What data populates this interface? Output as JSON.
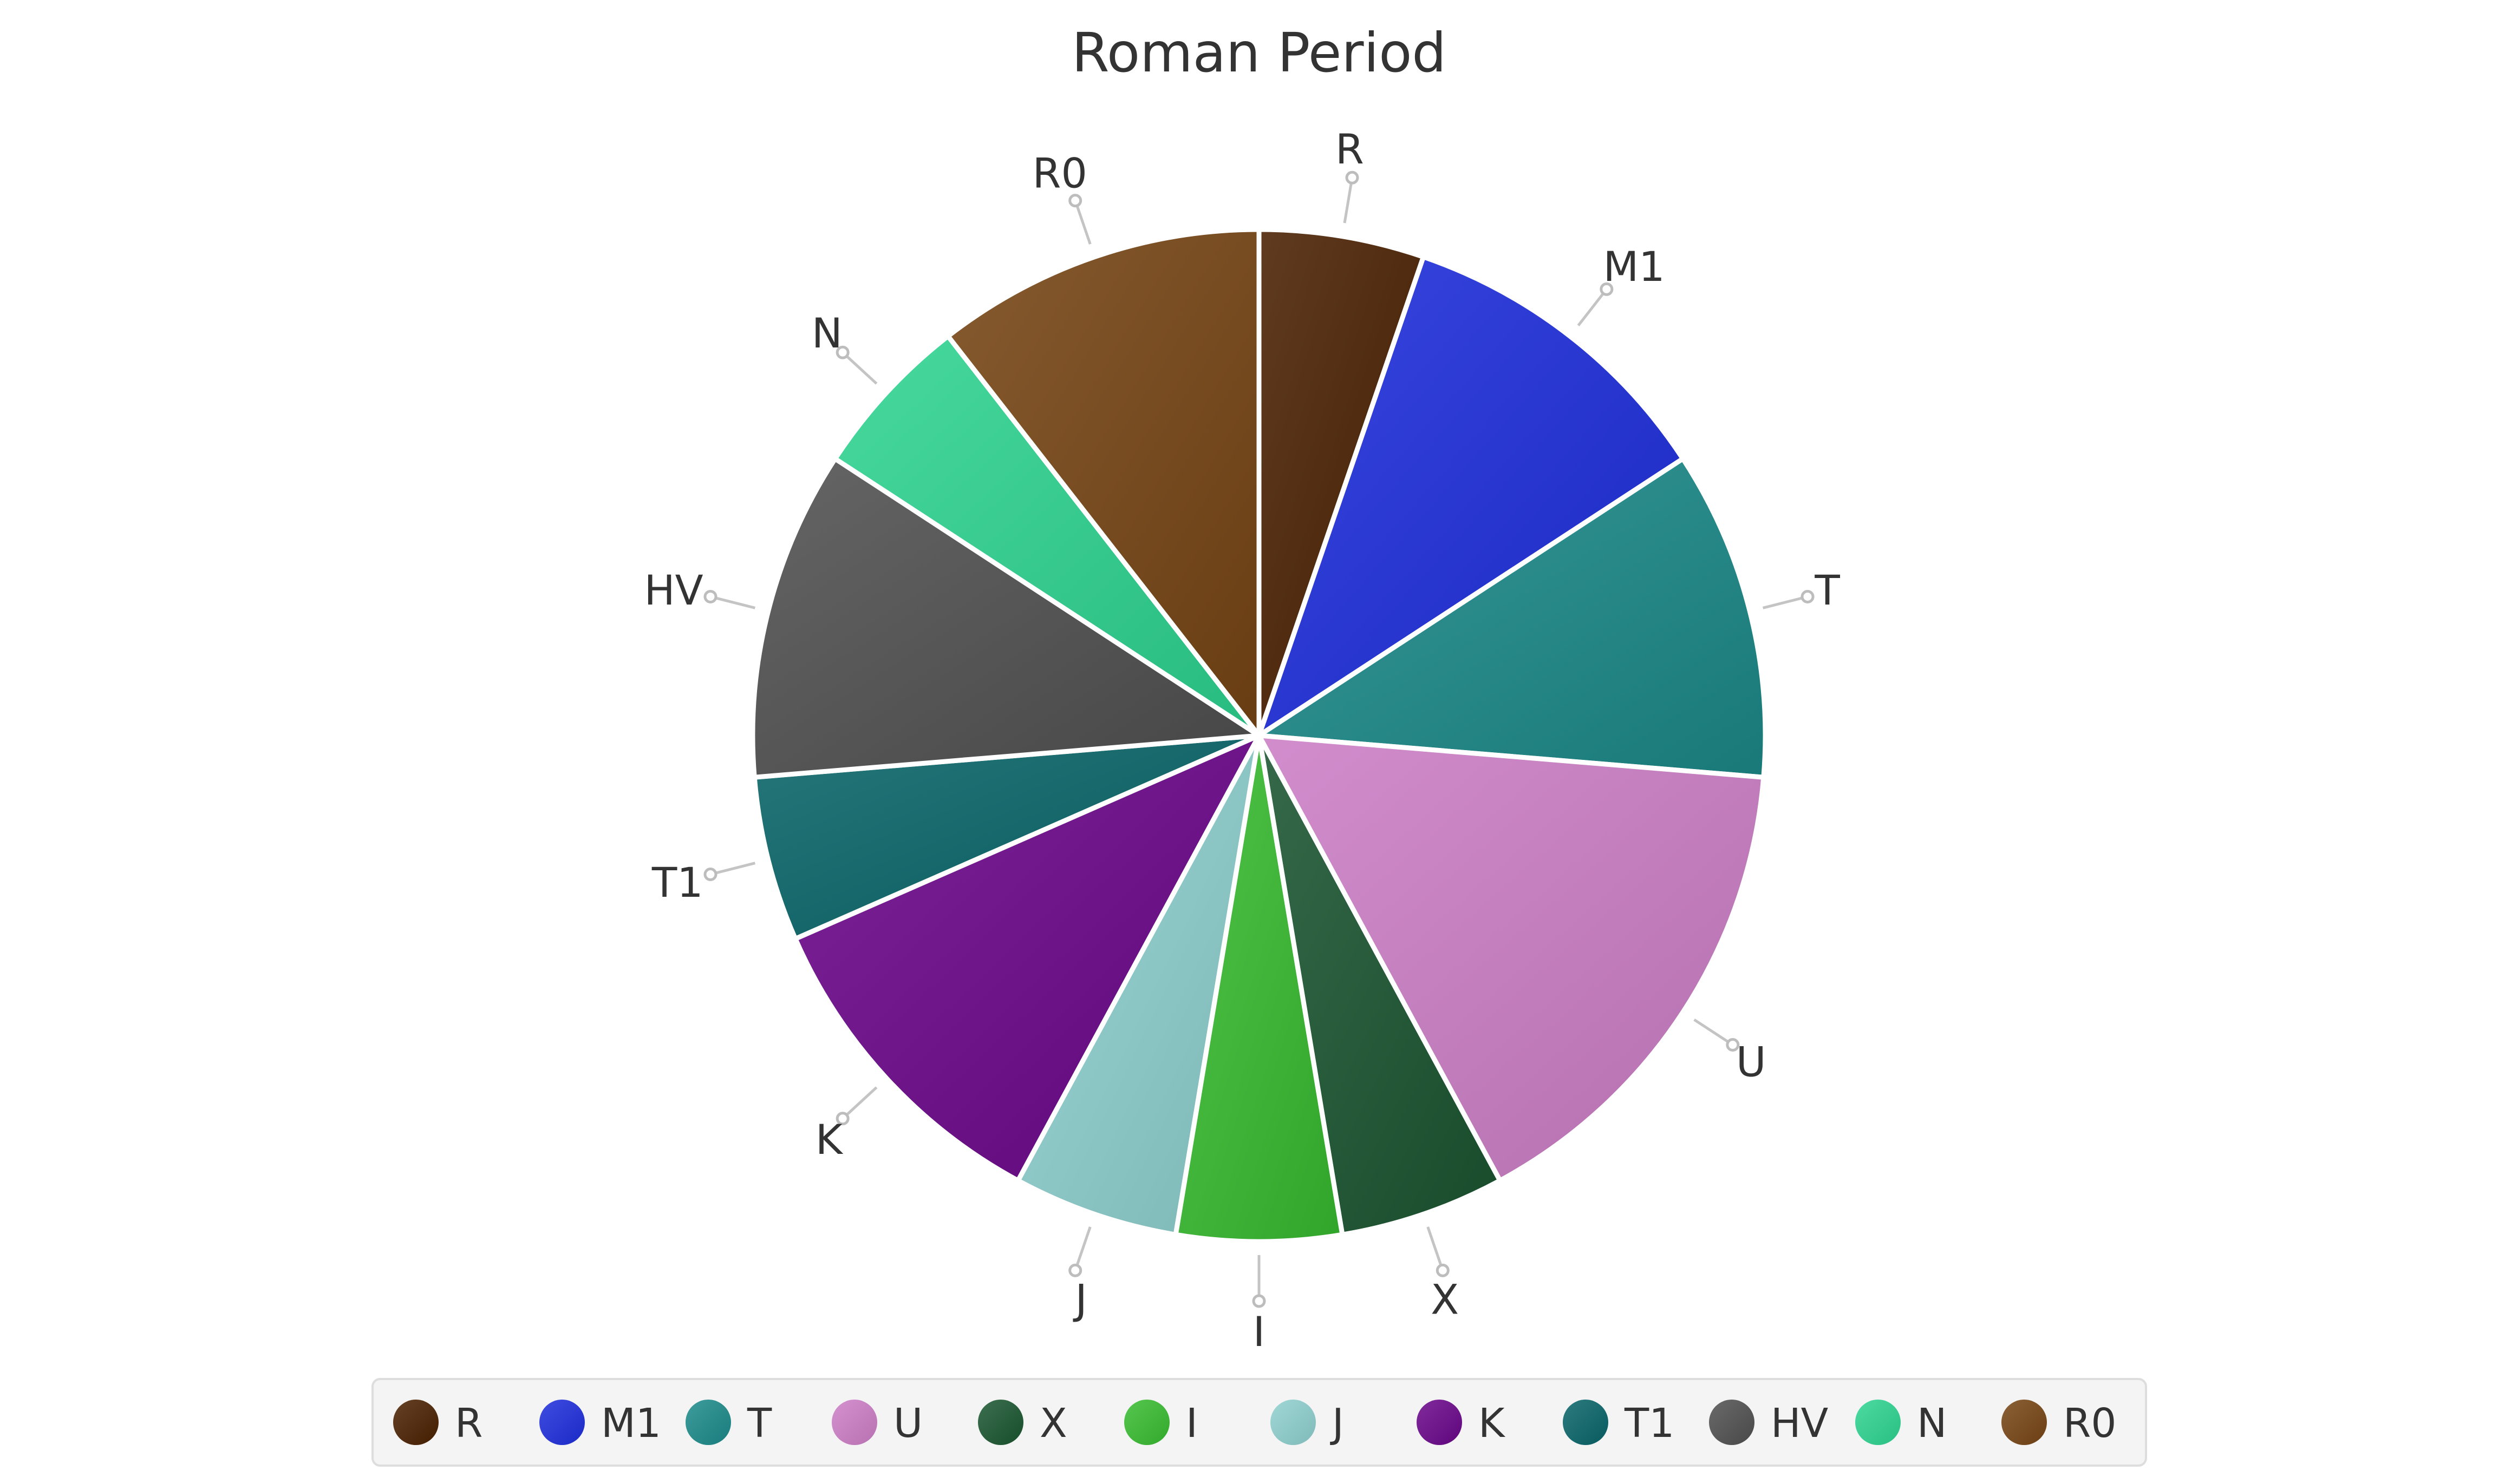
{
  "chart_data": {
    "type": "pie",
    "title": "Roman Period",
    "start_angle_deg": 90,
    "direction": "clockwise",
    "slices": [
      {
        "label": "R",
        "value": 5,
        "color": "#4a2000"
      },
      {
        "label": "M1",
        "value": 10,
        "color": "#1e2edc"
      },
      {
        "label": "T",
        "value": 10,
        "color": "#1c8a8a"
      },
      {
        "label": "U",
        "value": 15,
        "color": "#cc7ec6"
      },
      {
        "label": "X",
        "value": 5,
        "color": "#1a5530"
      },
      {
        "label": "I",
        "value": 5,
        "color": "#38bc30"
      },
      {
        "label": "J",
        "value": 5,
        "color": "#8ed0ce"
      },
      {
        "label": "K",
        "value": 10,
        "color": "#6a068a"
      },
      {
        "label": "T1",
        "value": 5,
        "color": "#086468"
      },
      {
        "label": "HV",
        "value": 10,
        "color": "#505050"
      },
      {
        "label": "N",
        "value": 5,
        "color": "#2ed490"
      },
      {
        "label": "R0",
        "value": 10,
        "color": "#774514"
      }
    ],
    "legend": {
      "position": "bottom",
      "entries": [
        "R",
        "M1",
        "T",
        "U",
        "X",
        "I",
        "J",
        "K",
        "T1",
        "HV",
        "N",
        "R0"
      ]
    }
  }
}
